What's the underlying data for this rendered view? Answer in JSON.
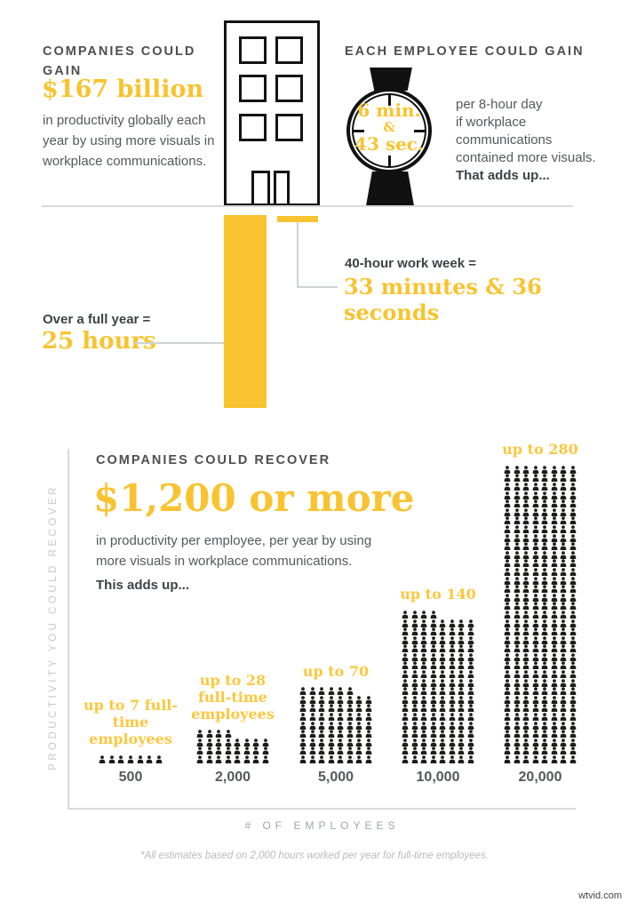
{
  "colors": {
    "gold": "#F9C32F",
    "gold_light": "#FBC73E",
    "dark": "#3E4247",
    "body": "#55585C",
    "heading_gray": "#4E4E4E",
    "axis_gray": "#D9D9D9",
    "icon_black": "#1D1D1B"
  },
  "top_left": {
    "heading": "COMPANIES COULD GAIN",
    "amount": "$167 billion",
    "body": "in productivity globally each year by using more visuals in workplace communications."
  },
  "top_right": {
    "heading": "EACH EMPLOYEE COULD GAIN",
    "watch": {
      "line1": "6 min.",
      "line2": "&",
      "line3": "43 sec."
    },
    "body": "per 8-hour day\nif workplace\ncommunications\ncontained more visuals.",
    "adds_up": "That adds up..."
  },
  "middle": {
    "week_label": "40-hour work week =",
    "week_value": "33 minutes & 36 seconds",
    "year_label": "Over a full year =",
    "year_value": "25 hours"
  },
  "bottom": {
    "heading": "COMPANIES COULD RECOVER",
    "amount": "$1,200 or more",
    "body": "in productivity per employee, per year by using\nmore visuals in workplace communications.",
    "adds_up": "This adds up...",
    "y_axis_label": "PRODUCTIVITY YOU COULD RECOVER",
    "x_axis_label": "# OF EMPLOYEES",
    "footnote": "*All estimates based on 2,000 hours worked per year for full-time employees."
  },
  "chart_data": [
    {
      "type": "bar",
      "note": "two yellow bars hanging below ground line of building",
      "categories": [
        "40-hour work week",
        "Over a full year"
      ],
      "value_labels": [
        "33 minutes & 36 seconds",
        "25 hours"
      ],
      "values_minutes": [
        33.6,
        1500
      ]
    },
    {
      "type": "pictogram-bar",
      "title": "COMPANIES COULD RECOVER",
      "categories": [
        "500",
        "2,000",
        "5,000",
        "10,000",
        "20,000"
      ],
      "values": [
        7,
        28,
        70,
        140,
        280
      ],
      "value_labels": [
        "up to 7 full-time\nemployees",
        "up to 28\nfull-time\nemployees",
        "up to 70",
        "up to 140",
        "up to 280"
      ],
      "icons_per_row": 8,
      "icon": "person-icon",
      "xlabel": "# OF EMPLOYEES",
      "ylabel": "PRODUCTIVITY YOU COULD RECOVER",
      "footnote": "*All estimates based on 2,000 hours worked per year for full-time employees.",
      "legend": false,
      "grid": false
    }
  ],
  "watermark": "wtvid.com"
}
